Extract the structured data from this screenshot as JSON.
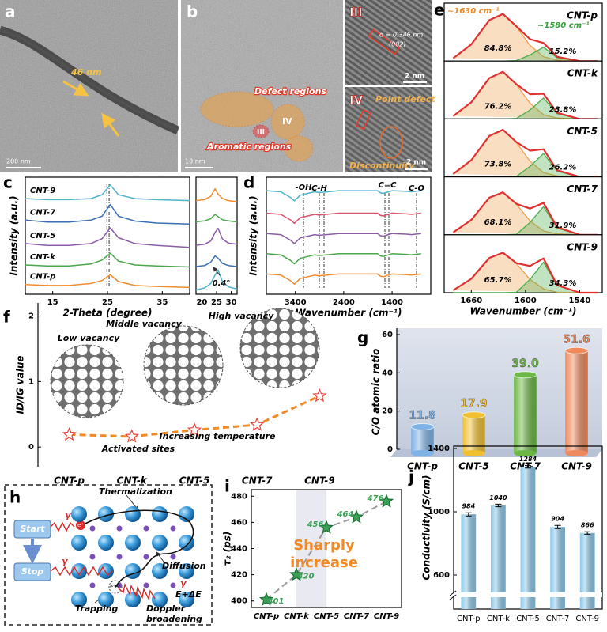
{
  "images": [
    {
      "panel_label": "a",
      "annotations": [
        "46 nm"
      ],
      "scale_bar": "200 nm"
    },
    {
      "panel_label": "b",
      "annotations": [
        "Defect regions",
        "Aromatic regions",
        "III",
        "IV"
      ],
      "scale_bar": "10 nm"
    },
    {
      "panel_label": "III",
      "annotations": [
        "d = 0.346 nm",
        "(002)"
      ],
      "scale_bar": "2 nm"
    },
    {
      "panel_label": "IV",
      "annotations": [
        "Point defect",
        "Discontinuity"
      ],
      "scale_bar": "2 nm"
    }
  ],
  "diagram": {
    "panel_label": "h",
    "labels": [
      "Thermalization",
      "Start",
      "Stop",
      "Diffusion",
      "Trapping",
      "Doppler",
      "broadening",
      "E+ΔE",
      "γ",
      "γ",
      "γ",
      "e⁺",
      "e⁻e⁺"
    ]
  },
  "chart_data": [
    {
      "type": "line",
      "panel_label": "c",
      "y_label": "Intensity (a.u.)",
      "x_label": "2-Theta (degree)",
      "xlim": [
        10,
        40
      ],
      "xticks": [
        15,
        25,
        35
      ],
      "ylim": [
        0,
        6
      ],
      "x": [
        10,
        14,
        18,
        22,
        24,
        25.5,
        27,
        30,
        34,
        40
      ],
      "series": [
        {
          "name": "CNT-9",
          "color": "#4fb3c9",
          "values": [
            4.9,
            4.85,
            4.85,
            4.9,
            5.1,
            5.6,
            5.1,
            4.9,
            4.85,
            4.8
          ]
        },
        {
          "name": "CNT-7",
          "color": "#3a6fb5",
          "values": [
            3.8,
            3.7,
            3.7,
            3.8,
            4.0,
            4.6,
            4.0,
            3.75,
            3.65,
            3.6
          ]
        },
        {
          "name": "CNT-5",
          "color": "#8b5ca8",
          "values": [
            2.6,
            2.5,
            2.5,
            2.6,
            2.85,
            3.4,
            2.9,
            2.6,
            2.5,
            2.4
          ]
        },
        {
          "name": "CNT-k",
          "color": "#4aa84a",
          "values": [
            1.5,
            1.45,
            1.45,
            1.55,
            1.75,
            2.1,
            1.7,
            1.5,
            1.45,
            1.4
          ]
        },
        {
          "name": "CNT-p",
          "color": "#f28b30",
          "values": [
            0.5,
            0.45,
            0.45,
            0.55,
            0.7,
            1.0,
            0.65,
            0.45,
            0.4,
            0.35
          ]
        }
      ]
    },
    {
      "type": "line",
      "xlim": [
        18,
        32
      ],
      "xticks": [
        20,
        25,
        30
      ],
      "ylim": [
        0,
        5.5
      ],
      "x": [
        18,
        21,
        23,
        24.5,
        25.5,
        27,
        29,
        32
      ],
      "annotations": [
        "0.4°"
      ],
      "series": [
        {
          "color": "#f28b30",
          "values": [
            4.4,
            4.45,
            4.6,
            4.95,
            4.7,
            4.5,
            4.4,
            4.35
          ]
        },
        {
          "color": "#4aa84a",
          "values": [
            3.4,
            3.45,
            3.55,
            3.75,
            3.65,
            3.5,
            3.45,
            3.4
          ]
        },
        {
          "color": "#8b5ca8",
          "values": [
            2.3,
            2.35,
            2.5,
            2.9,
            3.1,
            2.6,
            2.4,
            2.35
          ]
        },
        {
          "color": "#3a6fb5",
          "values": [
            1.3,
            1.35,
            1.5,
            1.8,
            1.7,
            1.45,
            1.35,
            1.3
          ]
        },
        {
          "color": "#4fb3c9",
          "values": [
            0.2,
            0.3,
            0.5,
            0.9,
            1.15,
            0.6,
            0.35,
            0.25
          ]
        }
      ]
    },
    {
      "type": "line",
      "panel_label": "d",
      "y_label": "Intensity (a.u.)",
      "x_label": "Wavenumber (cm⁻¹)",
      "xlim": [
        4000,
        600
      ],
      "xticks": [
        3400,
        2400,
        1400
      ],
      "ylim": [
        0.2,
        5.4
      ],
      "x": [
        4000,
        3700,
        3500,
        3420,
        3300,
        3000,
        2920,
        2850,
        2500,
        2000,
        1700,
        1640,
        1580,
        1400,
        1100,
        1000,
        800
      ],
      "annotations": [
        "-OH",
        "C-H",
        "C=C",
        "C-O"
      ],
      "series": [
        {
          "color": "#4fb3c9",
          "values": [
            4.8,
            4.75,
            4.5,
            4.35,
            4.6,
            4.75,
            4.72,
            4.73,
            4.8,
            4.8,
            4.8,
            4.7,
            4.68,
            4.8,
            4.77,
            4.75,
            4.8
          ]
        },
        {
          "color": "#d9536f",
          "values": [
            3.8,
            3.75,
            3.5,
            3.35,
            3.6,
            3.75,
            3.72,
            3.73,
            3.8,
            3.8,
            3.8,
            3.7,
            3.68,
            3.8,
            3.77,
            3.75,
            3.8
          ]
        },
        {
          "color": "#8b5ca8",
          "values": [
            2.9,
            2.85,
            2.6,
            2.45,
            2.7,
            2.85,
            2.82,
            2.83,
            2.9,
            2.9,
            2.9,
            2.8,
            2.78,
            2.9,
            2.87,
            2.85,
            2.9
          ]
        },
        {
          "color": "#4aa84a",
          "values": [
            2.0,
            1.95,
            1.7,
            1.55,
            1.8,
            1.95,
            1.92,
            1.93,
            2.0,
            2.0,
            2.0,
            1.9,
            1.88,
            2.0,
            1.97,
            1.95,
            2.0
          ]
        },
        {
          "color": "#f28b30",
          "values": [
            1.1,
            1.05,
            0.8,
            0.65,
            0.9,
            1.05,
            1.02,
            1.03,
            1.1,
            1.1,
            1.1,
            1.0,
            0.98,
            1.1,
            1.07,
            1.05,
            1.1
          ]
        }
      ]
    },
    {
      "type": "deconvolution",
      "panel_label": "e",
      "x_label": "Wavenumber (cm⁻¹)",
      "xlim": [
        1690,
        1515
      ],
      "xticks": [
        1660,
        1600,
        1540
      ],
      "ylim": [
        0,
        1.15
      ],
      "x": [
        1680,
        1660,
        1640,
        1625,
        1610,
        1595,
        1580,
        1565,
        1540,
        1520
      ],
      "panels": [
        {
          "title": "CNT-p",
          "peak_labels": [
            "~1630 cm⁻¹",
            "~1580 cm⁻¹"
          ],
          "annotations": [
            "84.8%",
            "15.2%"
          ],
          "series": [
            {
              "color": "#f0a050",
              "values": [
                0.06,
                0.35,
                0.86,
                0.99,
                0.72,
                0.33,
                0.09,
                0.02,
                0,
                0
              ]
            },
            {
              "color": "#4cae4c",
              "values": [
                0,
                0,
                0,
                0,
                0.01,
                0.13,
                0.29,
                0.07,
                0,
                0
              ]
            },
            {
              "color": "#e03030",
              "values": [
                0.06,
                0.35,
                0.86,
                0.99,
                0.73,
                0.46,
                0.38,
                0.09,
                0,
                0
              ]
            }
          ]
        },
        {
          "title": "CNT-k",
          "annotations": [
            "76.2%",
            "23.8%"
          ],
          "series": [
            {
              "color": "#f0a050",
              "values": [
                0.06,
                0.35,
                0.86,
                0.99,
                0.72,
                0.33,
                0.09,
                0.02,
                0,
                0
              ]
            },
            {
              "color": "#4cae4c",
              "values": [
                0,
                0,
                0,
                0,
                0.01,
                0.19,
                0.44,
                0.11,
                0,
                0
              ]
            },
            {
              "color": "#e03030",
              "values": [
                0.06,
                0.35,
                0.86,
                0.99,
                0.73,
                0.52,
                0.53,
                0.13,
                0,
                0
              ]
            }
          ]
        },
        {
          "title": "CNT-5",
          "annotations": [
            "73.8%",
            "26.2%"
          ],
          "series": [
            {
              "color": "#f0a050",
              "values": [
                0.06,
                0.35,
                0.86,
                0.99,
                0.72,
                0.33,
                0.09,
                0.02,
                0,
                0
              ]
            },
            {
              "color": "#4cae4c",
              "values": [
                0,
                0,
                0,
                0,
                0.01,
                0.22,
                0.49,
                0.12,
                0,
                0
              ]
            },
            {
              "color": "#e03030",
              "values": [
                0.06,
                0.35,
                0.86,
                0.99,
                0.73,
                0.55,
                0.58,
                0.14,
                0,
                0
              ]
            }
          ]
        },
        {
          "title": "CNT-7",
          "annotations": [
            "68.1%",
            "31.9%"
          ],
          "series": [
            {
              "color": "#f0a050",
              "values": [
                0.05,
                0.31,
                0.78,
                0.89,
                0.64,
                0.29,
                0.08,
                0.02,
                0,
                0
              ]
            },
            {
              "color": "#4cae4c",
              "values": [
                0,
                0,
                0,
                0,
                0.01,
                0.26,
                0.59,
                0.14,
                0,
                0
              ]
            },
            {
              "color": "#e03030",
              "values": [
                0.05,
                0.31,
                0.78,
                0.89,
                0.65,
                0.55,
                0.67,
                0.16,
                0,
                0
              ]
            }
          ]
        },
        {
          "title": "CNT-9",
          "annotations": [
            "65.7%",
            "34.3%"
          ],
          "series": [
            {
              "color": "#f0a050",
              "values": [
                0.05,
                0.29,
                0.73,
                0.84,
                0.61,
                0.28,
                0.08,
                0.01,
                0,
                0
              ]
            },
            {
              "color": "#4cae4c",
              "values": [
                0,
                0,
                0,
                0,
                0.01,
                0.28,
                0.64,
                0.15,
                0,
                0
              ]
            },
            {
              "color": "#e03030",
              "values": [
                0.05,
                0.29,
                0.73,
                0.84,
                0.62,
                0.56,
                0.72,
                0.16,
                0,
                0
              ]
            }
          ]
        }
      ]
    },
    {
      "type": "scatter",
      "panel_label": "f",
      "y_label": "ID/IG value",
      "categories": [
        "CNT-p",
        "CNT-k",
        "CNT-5",
        "CNT-7",
        "CNT-9"
      ],
      "values": [
        0.19,
        0.16,
        0.26,
        0.34,
        0.78
      ],
      "ylim": [
        -0.3,
        2.2
      ],
      "yticks": [
        0,
        1,
        2
      ],
      "color": "#e8443a",
      "line_color": "#f08a24",
      "annotations": [
        "Low vacancy",
        "Middle vacancy",
        "High vacancy",
        "Increasing temperature",
        "Activated sites"
      ]
    },
    {
      "type": "bar3d",
      "panel_label": "g",
      "y_label": "C/O atomic ratio",
      "categories": [
        "CNT-p",
        "CNT-5",
        "CNT-7",
        "CNT-9"
      ],
      "values": [
        11.8,
        17.9,
        39,
        51.6
      ],
      "value_labels": [
        "11.8",
        "17.9",
        "39.0",
        "51.6"
      ],
      "colors": [
        "#7fb2e5",
        "#f0c030",
        "#6cb845",
        "#f08a5d"
      ],
      "ylim": [
        0,
        60
      ],
      "yticks": [
        0,
        20,
        40,
        60
      ]
    },
    {
      "type": "scatter",
      "panel_label": "i",
      "y_label": "τ₂ (ps)",
      "categories": [
        "CNT-p",
        "CNT-k",
        "CNT-5",
        "CNT-7",
        "CNT-9"
      ],
      "values": [
        401,
        420,
        456,
        464,
        476
      ],
      "ylim": [
        395,
        485
      ],
      "yticks": [
        400,
        420,
        440,
        460,
        480
      ],
      "color": "#3aa055",
      "line_color": "#999999",
      "annotations": [
        "Sharply",
        "increase"
      ]
    },
    {
      "type": "bar",
      "panel_label": "j",
      "y_label": "Conductivity (S/cm)",
      "categories": [
        "CNT-p",
        "CNT-k",
        "CNT-5",
        "CNT-7",
        "CNT-9"
      ],
      "values": [
        984,
        1040,
        1284,
        904,
        866
      ],
      "errors": [
        10,
        8,
        8,
        10,
        8
      ],
      "ylim": [
        385,
        1415
      ],
      "yticks": [
        600,
        1000,
        1400
      ],
      "color": "#8cc8ea"
    }
  ]
}
